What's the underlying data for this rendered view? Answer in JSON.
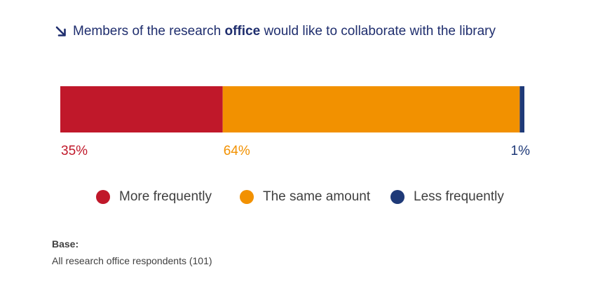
{
  "title": {
    "prefix": "Members of the research ",
    "highlight": "office",
    "suffix": " would like to collaborate with the library"
  },
  "colors": {
    "title": "#1f2e6e",
    "text": "#3f3f3f"
  },
  "chart_data": {
    "type": "bar",
    "orientation": "horizontal-stacked",
    "xlim": [
      0,
      100
    ],
    "grid": false,
    "legend_position": "bottom",
    "categories": [
      ""
    ],
    "series": [
      {
        "name": "More frequently",
        "values": [
          35
        ],
        "label": "35%",
        "color": "#c0182a"
      },
      {
        "name": "The same amount",
        "values": [
          64
        ],
        "label": "64%",
        "color": "#f29100"
      },
      {
        "name": "Less frequently",
        "values": [
          1
        ],
        "label": "1%",
        "color": "#1f3a78"
      }
    ]
  },
  "footnote": {
    "base_label": "Base:",
    "base_text": "All research office respondents (101)"
  }
}
